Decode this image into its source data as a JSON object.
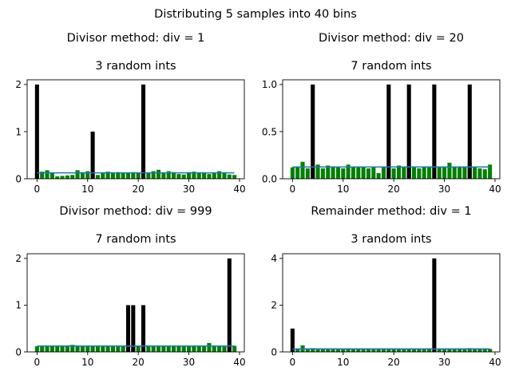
{
  "figure_title": "Distributing 5 samples into 40 bins",
  "colors": {
    "bar_green": "#008000",
    "bar_black": "#000000",
    "line_blue": "#1f77b4"
  },
  "chart_data": [
    {
      "type": "bar",
      "suptitle": "Divisor method: div = 1",
      "title": "3 random ints",
      "xlabel": "",
      "ylabel": "",
      "xlim": [
        -1.95,
        40.95
      ],
      "ylim": [
        0,
        2.1
      ],
      "xticks": [
        0,
        10,
        20,
        30,
        40
      ],
      "xtick_labels": [
        "0",
        "10",
        "20",
        "30",
        "40"
      ],
      "yticks": [
        0,
        1,
        2
      ],
      "ytick_labels": [
        "0",
        "1",
        "2"
      ],
      "mean_line": 0.125,
      "counts": [
        2,
        0,
        0,
        0,
        0,
        0,
        0,
        0,
        0,
        0,
        0,
        1,
        0,
        0,
        0,
        0,
        0,
        0,
        0,
        0,
        0,
        2,
        0,
        0,
        0,
        0,
        0,
        0,
        0,
        0,
        0,
        0,
        0,
        0,
        0,
        0,
        0,
        0,
        0,
        0
      ],
      "expected": [
        0.12,
        0.15,
        0.18,
        0.13,
        0.05,
        0.06,
        0.07,
        0.08,
        0.18,
        0.14,
        0.16,
        0.12,
        0.08,
        0.13,
        0.15,
        0.13,
        0.14,
        0.13,
        0.12,
        0.14,
        0.13,
        0.12,
        0.13,
        0.16,
        0.19,
        0.13,
        0.16,
        0.14,
        0.1,
        0.09,
        0.14,
        0.15,
        0.12,
        0.12,
        0.1,
        0.13,
        0.16,
        0.13,
        0.09,
        0.08
      ]
    },
    {
      "type": "bar",
      "suptitle": "Divisor method: div = 20",
      "title": "7 random ints",
      "xlabel": "",
      "ylabel": "",
      "xlim": [
        -1.95,
        40.95
      ],
      "ylim": [
        0,
        1.05
      ],
      "xticks": [
        0,
        10,
        20,
        30,
        40
      ],
      "xtick_labels": [
        "0",
        "10",
        "20",
        "30",
        "40"
      ],
      "yticks": [
        0,
        0.5,
        1
      ],
      "ytick_labels": [
        "0.0",
        "0.5",
        "1.0"
      ],
      "mean_line": 0.125,
      "counts": [
        0,
        0,
        0,
        0,
        1,
        0,
        0,
        0,
        0,
        0,
        0,
        0,
        0,
        0,
        0,
        0,
        0,
        0,
        0,
        1,
        0,
        0,
        0,
        1,
        0,
        0,
        0,
        0,
        1,
        0,
        0,
        0,
        0,
        0,
        0,
        1,
        0,
        0,
        0,
        0
      ],
      "expected": [
        0.12,
        0.13,
        0.18,
        0.11,
        0.12,
        0.15,
        0.11,
        0.14,
        0.13,
        0.12,
        0.11,
        0.15,
        0.12,
        0.13,
        0.12,
        0.11,
        0.13,
        0.06,
        0.12,
        0.13,
        0.11,
        0.14,
        0.12,
        0.13,
        0.12,
        0.11,
        0.13,
        0.12,
        0.14,
        0.13,
        0.12,
        0.17,
        0.13,
        0.12,
        0.13,
        0.17,
        0.12,
        0.11,
        0.1,
        0.15
      ]
    },
    {
      "type": "bar",
      "suptitle": "Divisor method: div = 999",
      "title": "7 random ints",
      "xlabel": "",
      "ylabel": "",
      "xlim": [
        -1.95,
        40.95
      ],
      "ylim": [
        0,
        2.1
      ],
      "xticks": [
        0,
        10,
        20,
        30,
        40
      ],
      "xtick_labels": [
        "0",
        "10",
        "20",
        "30",
        "40"
      ],
      "yticks": [
        0,
        1,
        2
      ],
      "ytick_labels": [
        "0",
        "1",
        "2"
      ],
      "mean_line": 0.125,
      "counts": [
        0,
        0,
        0,
        0,
        0,
        0,
        0,
        0,
        0,
        0,
        0,
        0,
        0,
        0,
        0,
        0,
        0,
        0,
        1,
        1,
        0,
        1,
        0,
        0,
        0,
        0,
        0,
        0,
        0,
        0,
        0,
        0,
        0,
        0,
        0,
        0,
        0,
        0,
        2,
        0
      ],
      "expected": [
        0.12,
        0.13,
        0.13,
        0.12,
        0.13,
        0.12,
        0.13,
        0.15,
        0.13,
        0.12,
        0.13,
        0.12,
        0.13,
        0.12,
        0.13,
        0.12,
        0.13,
        0.12,
        0.13,
        0.12,
        0.13,
        0.12,
        0.13,
        0.12,
        0.13,
        0.12,
        0.13,
        0.12,
        0.13,
        0.12,
        0.13,
        0.12,
        0.13,
        0.12,
        0.19,
        0.13,
        0.12,
        0.13,
        0.12,
        0.13
      ]
    },
    {
      "type": "bar",
      "suptitle": "Remainder method: div = 1",
      "title": "3 random ints",
      "xlabel": "",
      "ylabel": "",
      "xlim": [
        -1.95,
        40.95
      ],
      "ylim": [
        0,
        4.2
      ],
      "xticks": [
        0,
        10,
        20,
        30,
        40
      ],
      "xtick_labels": [
        "0",
        "10",
        "20",
        "30",
        "40"
      ],
      "yticks": [
        0,
        2,
        4
      ],
      "ytick_labels": [
        "0",
        "2",
        "4"
      ],
      "mean_line": 0.125,
      "counts": [
        1,
        0,
        0,
        0,
        0,
        0,
        0,
        0,
        0,
        0,
        0,
        0,
        0,
        0,
        0,
        0,
        0,
        0,
        0,
        0,
        0,
        0,
        0,
        0,
        0,
        0,
        0,
        0,
        4,
        0,
        0,
        0,
        0,
        0,
        0,
        0,
        0,
        0,
        0,
        0
      ],
      "expected": [
        0.1,
        0.15,
        0.28,
        0.13,
        0.16,
        0.14,
        0.15,
        0.13,
        0.1,
        0.12,
        0.11,
        0.13,
        0.12,
        0.11,
        0.12,
        0.15,
        0.13,
        0.11,
        0.12,
        0.15,
        0.13,
        0.12,
        0.14,
        0.11,
        0.12,
        0.13,
        0.12,
        0.14,
        0.13,
        0.12,
        0.11,
        0.12,
        0.13,
        0.14,
        0.15,
        0.16,
        0.14,
        0.12,
        0.11,
        0.13
      ]
    }
  ]
}
